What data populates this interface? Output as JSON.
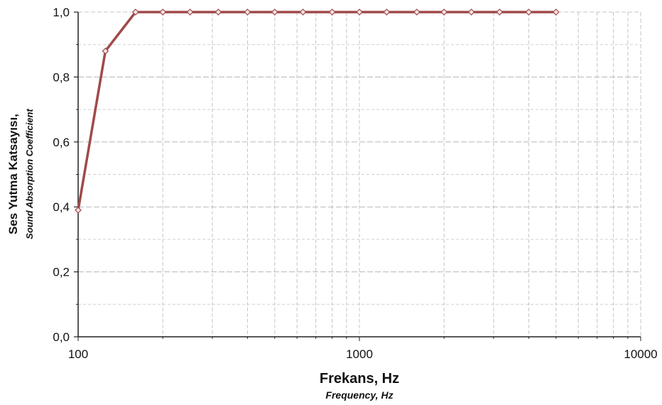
{
  "chart_data": {
    "type": "line",
    "x_scale": "log",
    "xlim": [
      100,
      10000
    ],
    "ylim": [
      0,
      1
    ],
    "grid": true,
    "legend": "none",
    "x_tick_labels": [
      "100",
      "1000",
      "10000"
    ],
    "y_tick_labels": [
      "0,0",
      "0,2",
      "0,4",
      "0,6",
      "0,8",
      "1,0"
    ],
    "ylabel": "Ses Yutma Katsayısı,",
    "ylabel_sub": "Sound Absorption Coefficient",
    "xlabel": "Frekans, Hz",
    "xlabel_sub": "Frequency, Hz",
    "line_color": "#a04a4a",
    "series": [
      {
        "x": [
          100,
          125,
          160,
          200,
          250,
          315,
          400,
          500,
          630,
          800,
          1000,
          1250,
          1600,
          2000,
          2500,
          3150,
          4000,
          5000
        ],
        "values": [
          0.39,
          0.88,
          1.0,
          1.0,
          1.0,
          1.0,
          1.0,
          1.0,
          1.0,
          1.0,
          1.0,
          1.0,
          1.0,
          1.0,
          1.0,
          1.0,
          1.0,
          1.0
        ]
      }
    ]
  }
}
